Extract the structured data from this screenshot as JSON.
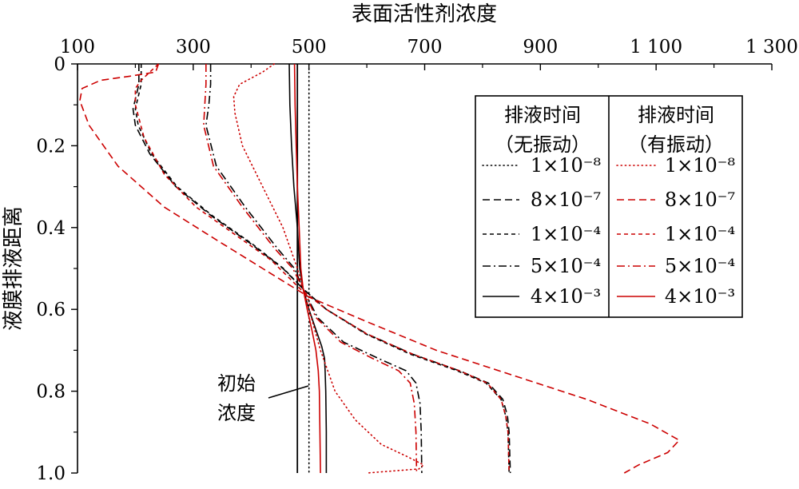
{
  "chart_data": {
    "type": "line",
    "xlabel": "表面活性剂浓度",
    "ylabel": "液膜排液距离",
    "xlim": [
      100,
      1300
    ],
    "ylim": [
      0,
      1.0
    ],
    "x_ticks": [
      "100",
      "300",
      "500",
      "700",
      "900",
      "1 100",
      "1 300"
    ],
    "x_tick_values": [
      100,
      300,
      500,
      700,
      900,
      1100,
      1300
    ],
    "y_ticks": [
      "0",
      "0.2",
      "0.4",
      "0.6",
      "0.8",
      "1.0"
    ],
    "y_tick_values": [
      0,
      0.2,
      0.4,
      0.6,
      0.8,
      1.0
    ],
    "x_axis_position": "top",
    "y_axis_inverted": true,
    "grid": false,
    "legend_position": "top-right",
    "legend": {
      "col1_header": [
        "排液时间",
        "（无振动）"
      ],
      "col2_header": [
        "排液时间",
        "（有振动）"
      ],
      "rows": [
        "1×10⁻⁸",
        "8×10⁻⁷",
        "1×10⁻⁴",
        "5×10⁻⁴",
        "4×10⁻³"
      ]
    },
    "annotation": {
      "text": [
        "初始",
        "浓度"
      ],
      "x": 480,
      "y": 0.78
    },
    "initial_concentration": 480,
    "colors": {
      "no_vibration": "#000000",
      "vibration": "#cc0000"
    },
    "series": [
      {
        "name": "1×10⁻⁸",
        "group": "no_vibration",
        "style": "dotted",
        "points": [
          [
            500,
            0
          ],
          [
            500,
            1.0
          ]
        ]
      },
      {
        "name": "8×10⁻⁷",
        "group": "no_vibration",
        "style": "dashed",
        "points": [
          [
            206,
            0
          ],
          [
            206,
            0.05
          ],
          [
            201,
            0.08
          ],
          [
            196,
            0.11
          ],
          [
            200,
            0.15
          ],
          [
            225,
            0.22
          ],
          [
            270,
            0.3
          ],
          [
            330,
            0.37
          ],
          [
            400,
            0.44
          ],
          [
            455,
            0.5
          ],
          [
            490,
            0.55
          ],
          [
            530,
            0.6
          ],
          [
            600,
            0.66
          ],
          [
            680,
            0.71
          ],
          [
            760,
            0.75
          ],
          [
            810,
            0.78
          ],
          [
            835,
            0.82
          ],
          [
            843,
            0.86
          ],
          [
            846,
            0.9
          ],
          [
            848,
            1.0
          ]
        ]
      },
      {
        "name": "1×10⁻⁴",
        "group": "no_vibration",
        "style": "short-dashed",
        "points": [
          [
            210,
            0
          ],
          [
            210,
            0.05
          ],
          [
            205,
            0.08
          ],
          [
            200,
            0.11
          ],
          [
            205,
            0.15
          ],
          [
            228,
            0.22
          ],
          [
            272,
            0.3
          ],
          [
            332,
            0.37
          ],
          [
            402,
            0.44
          ],
          [
            456,
            0.5
          ],
          [
            490,
            0.55
          ],
          [
            530,
            0.6
          ],
          [
            598,
            0.66
          ],
          [
            676,
            0.71
          ],
          [
            756,
            0.75
          ],
          [
            806,
            0.78
          ],
          [
            832,
            0.82
          ],
          [
            840,
            0.86
          ],
          [
            844,
            0.9
          ],
          [
            846,
            1.0
          ]
        ]
      },
      {
        "name": "5×10⁻⁴",
        "group": "no_vibration",
        "style": "dash-dot",
        "points": [
          [
            330,
            0
          ],
          [
            330,
            0.05
          ],
          [
            327,
            0.1
          ],
          [
            322,
            0.15
          ],
          [
            340,
            0.25
          ],
          [
            390,
            0.35
          ],
          [
            445,
            0.45
          ],
          [
            475,
            0.5
          ],
          [
            490,
            0.55
          ],
          [
            515,
            0.62
          ],
          [
            560,
            0.68
          ],
          [
            620,
            0.72
          ],
          [
            668,
            0.75
          ],
          [
            685,
            0.78
          ],
          [
            692,
            0.83
          ],
          [
            694,
            0.9
          ],
          [
            695,
            1.0
          ]
        ]
      },
      {
        "name": "4×10⁻³",
        "group": "no_vibration",
        "style": "solid",
        "points": [
          [
            466,
            0
          ],
          [
            467,
            0.1
          ],
          [
            470,
            0.2
          ],
          [
            474,
            0.3
          ],
          [
            480,
            0.4
          ],
          [
            484,
            0.5
          ],
          [
            490,
            0.55
          ],
          [
            500,
            0.6
          ],
          [
            512,
            0.65
          ],
          [
            522,
            0.69
          ],
          [
            527,
            0.72
          ],
          [
            528,
            0.75
          ],
          [
            529,
            0.8
          ],
          [
            530,
            0.9
          ],
          [
            530,
            1.0
          ]
        ]
      },
      {
        "name": "1×10⁻⁸",
        "group": "vibration",
        "style": "dotted",
        "points": [
          [
            440,
            0
          ],
          [
            420,
            0.02
          ],
          [
            380,
            0.05
          ],
          [
            370,
            0.08
          ],
          [
            372,
            0.12
          ],
          [
            385,
            0.2
          ],
          [
            420,
            0.3
          ],
          [
            455,
            0.4
          ],
          [
            480,
            0.5
          ],
          [
            500,
            0.6
          ],
          [
            520,
            0.7
          ],
          [
            545,
            0.8
          ],
          [
            580,
            0.87
          ],
          [
            625,
            0.93
          ],
          [
            670,
            0.96
          ],
          [
            698,
            0.98
          ],
          [
            690,
            0.99
          ],
          [
            600,
            1.0
          ]
        ]
      },
      {
        "name": "8×10⁻⁷",
        "group": "vibration",
        "style": "dashed",
        "points": [
          [
            240,
            0
          ],
          [
            235,
            0.02
          ],
          [
            190,
            0.03
          ],
          [
            140,
            0.04
          ],
          [
            108,
            0.06
          ],
          [
            104,
            0.09
          ],
          [
            120,
            0.15
          ],
          [
            170,
            0.25
          ],
          [
            250,
            0.35
          ],
          [
            340,
            0.43
          ],
          [
            420,
            0.5
          ],
          [
            500,
            0.57
          ],
          [
            600,
            0.63
          ],
          [
            720,
            0.7
          ],
          [
            850,
            0.76
          ],
          [
            980,
            0.82
          ],
          [
            1090,
            0.88
          ],
          [
            1140,
            0.92
          ],
          [
            1120,
            0.95
          ],
          [
            1070,
            0.98
          ],
          [
            1045,
            1.0
          ]
        ]
      },
      {
        "name": "1×10⁻⁴",
        "group": "vibration",
        "style": "short-dashed",
        "points": [
          [
            240,
            0
          ],
          [
            225,
            0.02
          ],
          [
            210,
            0.04
          ],
          [
            200,
            0.06
          ],
          [
            200,
            0.1
          ],
          [
            215,
            0.18
          ],
          [
            250,
            0.27
          ],
          [
            305,
            0.35
          ],
          [
            375,
            0.42
          ],
          [
            435,
            0.48
          ],
          [
            485,
            0.55
          ],
          [
            530,
            0.6
          ],
          [
            600,
            0.66
          ],
          [
            680,
            0.71
          ],
          [
            760,
            0.75
          ],
          [
            808,
            0.78
          ],
          [
            832,
            0.82
          ],
          [
            840,
            0.86
          ],
          [
            844,
            0.9
          ],
          [
            846,
            1.0
          ]
        ]
      },
      {
        "name": "5×10⁻⁴",
        "group": "vibration",
        "style": "dash-dot",
        "points": [
          [
            322,
            0
          ],
          [
            322,
            0.05
          ],
          [
            320,
            0.1
          ],
          [
            318,
            0.15
          ],
          [
            335,
            0.25
          ],
          [
            385,
            0.35
          ],
          [
            440,
            0.45
          ],
          [
            472,
            0.5
          ],
          [
            490,
            0.55
          ],
          [
            512,
            0.62
          ],
          [
            555,
            0.68
          ],
          [
            610,
            0.72
          ],
          [
            655,
            0.75
          ],
          [
            675,
            0.78
          ],
          [
            682,
            0.83
          ],
          [
            685,
            0.9
          ],
          [
            686,
            1.0
          ]
        ]
      },
      {
        "name": "4×10⁻³",
        "group": "vibration",
        "style": "solid",
        "points": [
          [
            475,
            0
          ],
          [
            476,
            0.1
          ],
          [
            478,
            0.2
          ],
          [
            480,
            0.3
          ],
          [
            483,
            0.4
          ],
          [
            486,
            0.5
          ],
          [
            490,
            0.55
          ],
          [
            497,
            0.6
          ],
          [
            505,
            0.65
          ],
          [
            512,
            0.7
          ],
          [
            516,
            0.75
          ],
          [
            518,
            0.8
          ],
          [
            519,
            0.9
          ],
          [
            520,
            1.0
          ]
        ]
      }
    ]
  }
}
